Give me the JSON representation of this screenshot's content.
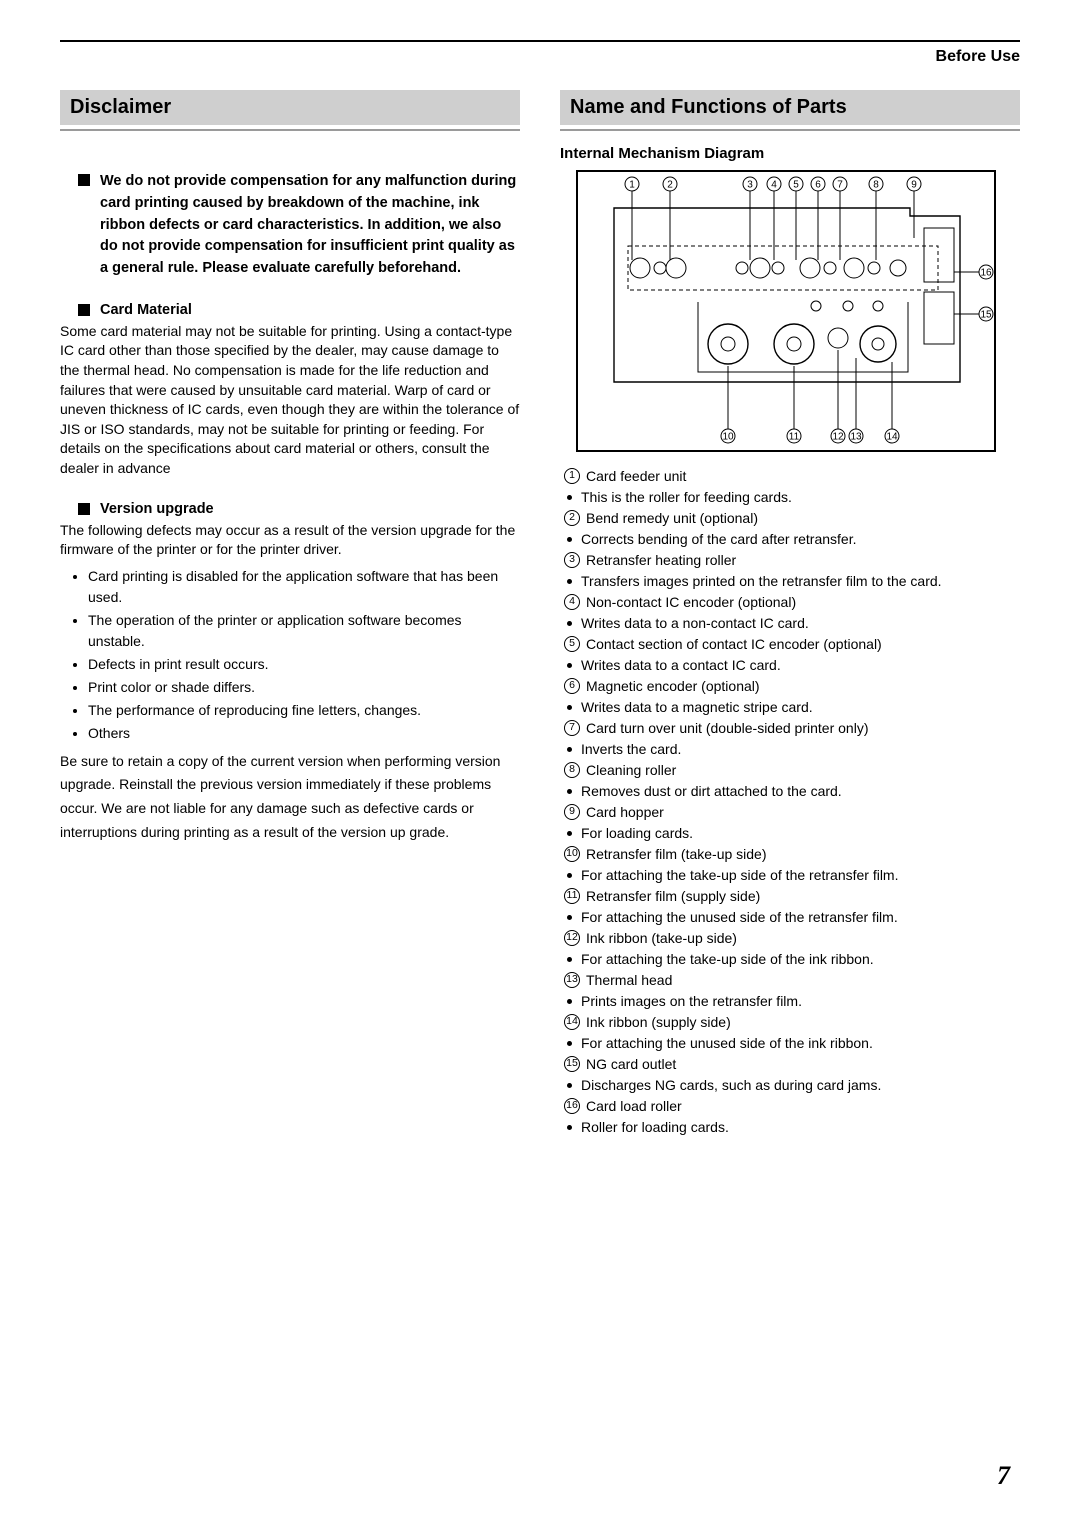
{
  "header_label": "Before Use",
  "page_number": "7",
  "left": {
    "section_title": "Disclaimer",
    "intro_block": "We do not provide compensation for any malfunction during card printing caused by breakdown of the machine, ink ribbon defects or card characteristics. In addition, we also do not provide compensation for insufficient print quality as a general rule. Please evaluate carefully beforehand.",
    "sub1_title": "Card Material",
    "sub1_body": "Some card material may not be suitable for printing. Using a contact-type IC card other than those specified by the dealer, may cause damage to the thermal head. No compensation is made for the life reduction and failures that were caused by unsuitable card material. Warp of card or uneven thickness of IC cards, even though they are within the tolerance of JIS or ISO standards, may not be suitable for printing or feeding. For details on the specifications about card material or others, consult the dealer in advance",
    "sub2_title": "Version upgrade",
    "sub2_body": "The following defects may occur as a result of the version upgrade for the firmware of the printer or for the printer driver.",
    "sub2_bullets": [
      "Card printing is disabled for the application software that has been used.",
      "The operation of the printer or application software becomes unstable.",
      "Defects in print result occurs.",
      "Print color or shade differs.",
      "The performance of reproducing fine letters, changes.",
      "Others"
    ],
    "sub2_tail": "Be sure to retain a copy of the current version when performing version upgrade. Reinstall the previous version immediately if these problems occur. We are not liable for any damage such as defective cards or interruptions during printing as a result of the version up grade."
  },
  "right": {
    "section_title": "Name and Functions of Parts",
    "diagram_title": "Internal Mechanism Diagram",
    "diagram_top_numbers": [
      "1",
      "2",
      "3",
      "4",
      "5",
      "6",
      "7",
      "8",
      "9"
    ],
    "diagram_right_numbers": [
      "16",
      "15"
    ],
    "diagram_bottom_numbers": [
      "10",
      "11",
      "12",
      "13",
      "14"
    ],
    "callouts": [
      {
        "n": "1",
        "label": "Card feeder unit",
        "desc": "This is the roller for feeding cards."
      },
      {
        "n": "2",
        "label": "Bend remedy unit (optional)",
        "desc": "Corrects bending of the card after retransfer."
      },
      {
        "n": "3",
        "label": "Retransfer heating roller",
        "desc": "Transfers images printed on the retransfer film to the card."
      },
      {
        "n": "4",
        "label": "Non-contact IC encoder (optional)",
        "desc": "Writes data to a non-contact IC card."
      },
      {
        "n": "5",
        "label": "Contact section of contact IC encoder (optional)",
        "desc": "Writes data to a contact IC card."
      },
      {
        "n": "6",
        "label": "Magnetic encoder (optional)",
        "desc": "Writes data to a magnetic stripe card."
      },
      {
        "n": "7",
        "label": "Card turn over unit (double-sided printer only)",
        "desc": "Inverts the card."
      },
      {
        "n": "8",
        "label": "Cleaning roller",
        "desc": "Removes dust or dirt attached to the card."
      },
      {
        "n": "9",
        "label": "Card hopper",
        "desc": "For loading cards."
      },
      {
        "n": "10",
        "label": "Retransfer film (take-up side)",
        "desc": "For attaching the take-up side of the retransfer film."
      },
      {
        "n": "11",
        "label": "Retransfer film (supply side)",
        "desc": "For attaching the unused side of the retransfer film."
      },
      {
        "n": "12",
        "label": "Ink ribbon (take-up side)",
        "desc": "For attaching the take-up side of the ink ribbon."
      },
      {
        "n": "13",
        "label": "Thermal head",
        "desc": "Prints images on the retransfer film."
      },
      {
        "n": "14",
        "label": "Ink ribbon (supply side)",
        "desc": "For attaching the unused side of the ink ribbon."
      },
      {
        "n": "15",
        "label": "NG card outlet",
        "desc": "Discharges NG cards, such as during card jams."
      },
      {
        "n": "16",
        "label": "Card load roller",
        "desc": "Roller for loading cards."
      }
    ]
  },
  "diagram_style": {
    "border_color": "#000000",
    "stroke": "#000000",
    "fill": "#ffffff",
    "dash": "4,3"
  }
}
